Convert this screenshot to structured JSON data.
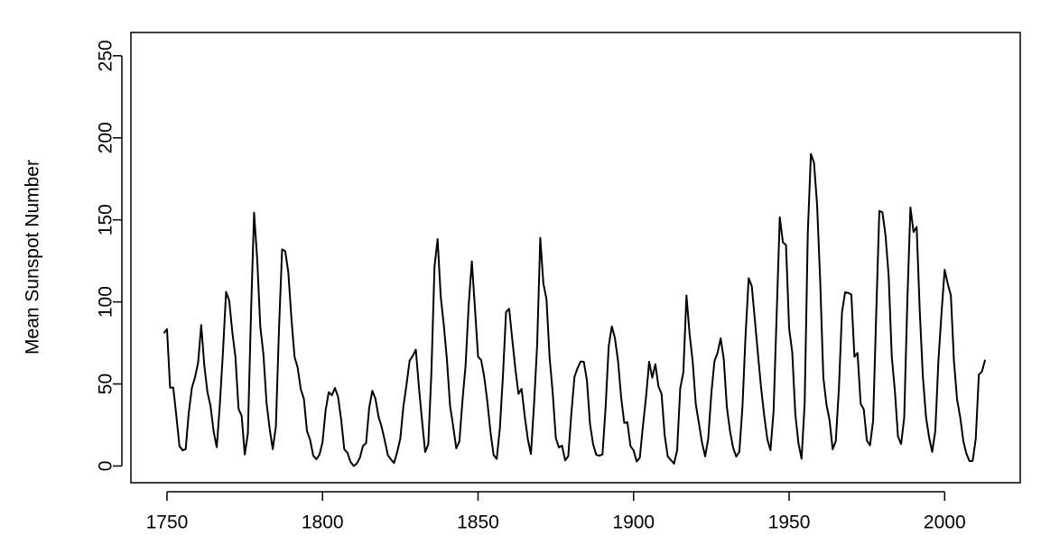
{
  "chart_data": {
    "type": "line",
    "ylabel": "Mean Sunspot Number",
    "color": "#000000",
    "grid": false,
    "xlim": [
      1738.4,
      2024.3
    ],
    "ylim": [
      -10.2,
      264.2
    ],
    "xticks": [
      1750,
      1800,
      1850,
      1900,
      1950,
      2000
    ],
    "yticks": [
      0,
      50,
      100,
      150,
      200,
      250
    ],
    "x": [
      1749,
      1750,
      1751,
      1752,
      1753,
      1754,
      1755,
      1756,
      1757,
      1758,
      1759,
      1760,
      1761,
      1762,
      1763,
      1764,
      1765,
      1766,
      1767,
      1768,
      1769,
      1770,
      1771,
      1772,
      1773,
      1774,
      1775,
      1776,
      1777,
      1778,
      1779,
      1780,
      1781,
      1782,
      1783,
      1784,
      1785,
      1786,
      1787,
      1788,
      1789,
      1790,
      1791,
      1792,
      1793,
      1794,
      1795,
      1796,
      1797,
      1798,
      1799,
      1800,
      1801,
      1802,
      1803,
      1804,
      1805,
      1806,
      1807,
      1808,
      1809,
      1810,
      1811,
      1812,
      1813,
      1814,
      1815,
      1816,
      1817,
      1818,
      1819,
      1820,
      1821,
      1822,
      1823,
      1824,
      1825,
      1826,
      1827,
      1828,
      1829,
      1830,
      1831,
      1832,
      1833,
      1834,
      1835,
      1836,
      1837,
      1838,
      1839,
      1840,
      1841,
      1842,
      1843,
      1844,
      1845,
      1846,
      1847,
      1848,
      1849,
      1850,
      1851,
      1852,
      1853,
      1854,
      1855,
      1856,
      1857,
      1858,
      1859,
      1860,
      1861,
      1862,
      1863,
      1864,
      1865,
      1866,
      1867,
      1868,
      1869,
      1870,
      1871,
      1872,
      1873,
      1874,
      1875,
      1876,
      1877,
      1878,
      1879,
      1880,
      1881,
      1882,
      1883,
      1884,
      1885,
      1886,
      1887,
      1888,
      1889,
      1890,
      1891,
      1892,
      1893,
      1894,
      1895,
      1896,
      1897,
      1898,
      1899,
      1900,
      1901,
      1902,
      1903,
      1904,
      1905,
      1906,
      1907,
      1908,
      1909,
      1910,
      1911,
      1912,
      1913,
      1914,
      1915,
      1916,
      1917,
      1918,
      1919,
      1920,
      1921,
      1922,
      1923,
      1924,
      1925,
      1926,
      1927,
      1928,
      1929,
      1930,
      1931,
      1932,
      1933,
      1934,
      1935,
      1936,
      1937,
      1938,
      1939,
      1940,
      1941,
      1942,
      1943,
      1944,
      1945,
      1946,
      1947,
      1948,
      1949,
      1950,
      1951,
      1952,
      1953,
      1954,
      1955,
      1956,
      1957,
      1958,
      1959,
      1960,
      1961,
      1962,
      1963,
      1964,
      1965,
      1966,
      1967,
      1968,
      1969,
      1970,
      1971,
      1972,
      1973,
      1974,
      1975,
      1976,
      1977,
      1978,
      1979,
      1980,
      1981,
      1982,
      1983,
      1984,
      1985,
      1986,
      1987,
      1988,
      1989,
      1990,
      1991,
      1992,
      1993,
      1994,
      1995,
      1996,
      1997,
      1998,
      1999,
      2000,
      2001,
      2002,
      2003,
      2004,
      2005,
      2006,
      2007,
      2008,
      2009,
      2010,
      2011,
      2012,
      2013
    ],
    "values": [
      80.9,
      83.4,
      47.7,
      47.8,
      30.7,
      12.2,
      9.6,
      10.2,
      32.4,
      47.6,
      54.0,
      62.9,
      85.9,
      61.2,
      45.1,
      36.4,
      20.9,
      11.4,
      37.8,
      69.8,
      106.1,
      100.8,
      81.6,
      66.5,
      34.8,
      30.6,
      7.0,
      19.8,
      92.5,
      154.4,
      125.9,
      84.8,
      68.1,
      38.5,
      22.8,
      10.2,
      24.1,
      82.9,
      132.0,
      130.9,
      118.1,
      89.9,
      66.6,
      60.0,
      46.9,
      41.0,
      21.3,
      16.0,
      6.4,
      4.1,
      6.8,
      14.5,
      34.0,
      45.0,
      43.1,
      47.5,
      42.2,
      28.1,
      10.1,
      8.1,
      2.5,
      0.0,
      1.4,
      5.0,
      12.2,
      13.9,
      35.4,
      45.8,
      41.1,
      30.1,
      23.9,
      15.6,
      6.6,
      4.0,
      1.8,
      8.5,
      16.6,
      36.3,
      49.6,
      64.2,
      67.0,
      70.9,
      47.8,
      27.5,
      8.5,
      13.2,
      56.9,
      121.5,
      138.3,
      103.2,
      85.7,
      64.6,
      36.7,
      24.2,
      10.7,
      15.0,
      40.1,
      61.5,
      98.5,
      124.7,
      96.3,
      66.6,
      64.5,
      54.1,
      39.0,
      20.6,
      6.7,
      4.3,
      22.7,
      54.8,
      93.8,
      95.8,
      77.2,
      59.1,
      44.0,
      47.0,
      30.5,
      16.3,
      7.3,
      37.6,
      74.0,
      139.0,
      111.2,
      101.6,
      66.2,
      44.7,
      17.0,
      11.3,
      12.4,
      3.4,
      6.0,
      32.3,
      54.3,
      59.7,
      63.7,
      63.5,
      52.2,
      25.4,
      13.1,
      6.8,
      6.3,
      7.1,
      35.6,
      73.0,
      85.1,
      78.0,
      64.0,
      41.8,
      26.2,
      26.7,
      12.1,
      9.5,
      2.7,
      5.0,
      24.4,
      42.0,
      63.5,
      53.8,
      62.0,
      48.5,
      43.9,
      18.6,
      5.7,
      3.6,
      1.4,
      9.6,
      47.4,
      57.1,
      103.9,
      80.6,
      63.6,
      37.6,
      26.1,
      14.2,
      5.8,
      16.7,
      44.3,
      63.9,
      69.0,
      77.8,
      64.9,
      35.7,
      21.2,
      11.1,
      5.7,
      8.7,
      36.1,
      79.7,
      114.4,
      109.6,
      88.8,
      67.8,
      47.5,
      30.6,
      16.3,
      9.6,
      33.2,
      92.6,
      151.6,
      136.3,
      134.7,
      83.9,
      69.4,
      31.5,
      13.9,
      4.4,
      38.0,
      141.7,
      190.2,
      184.8,
      159.0,
      112.3,
      53.9,
      37.6,
      27.9,
      10.2,
      15.1,
      47.0,
      93.8,
      105.9,
      105.5,
      104.5,
      66.6,
      68.9,
      38.0,
      34.5,
      15.5,
      12.6,
      27.5,
      92.5,
      155.4,
      154.6,
      140.4,
      115.9,
      66.6,
      45.9,
      17.9,
      13.4,
      29.4,
      100.2,
      157.6,
      142.6,
      145.7,
      94.3,
      54.6,
      29.9,
      17.5,
      8.6,
      21.5,
      64.3,
      93.3,
      119.6,
      111.0,
      104.0,
      63.7,
      40.4,
      29.8,
      15.2,
      7.5,
      2.9,
      3.1,
      16.5,
      55.7,
      57.6,
      64.7
    ]
  }
}
